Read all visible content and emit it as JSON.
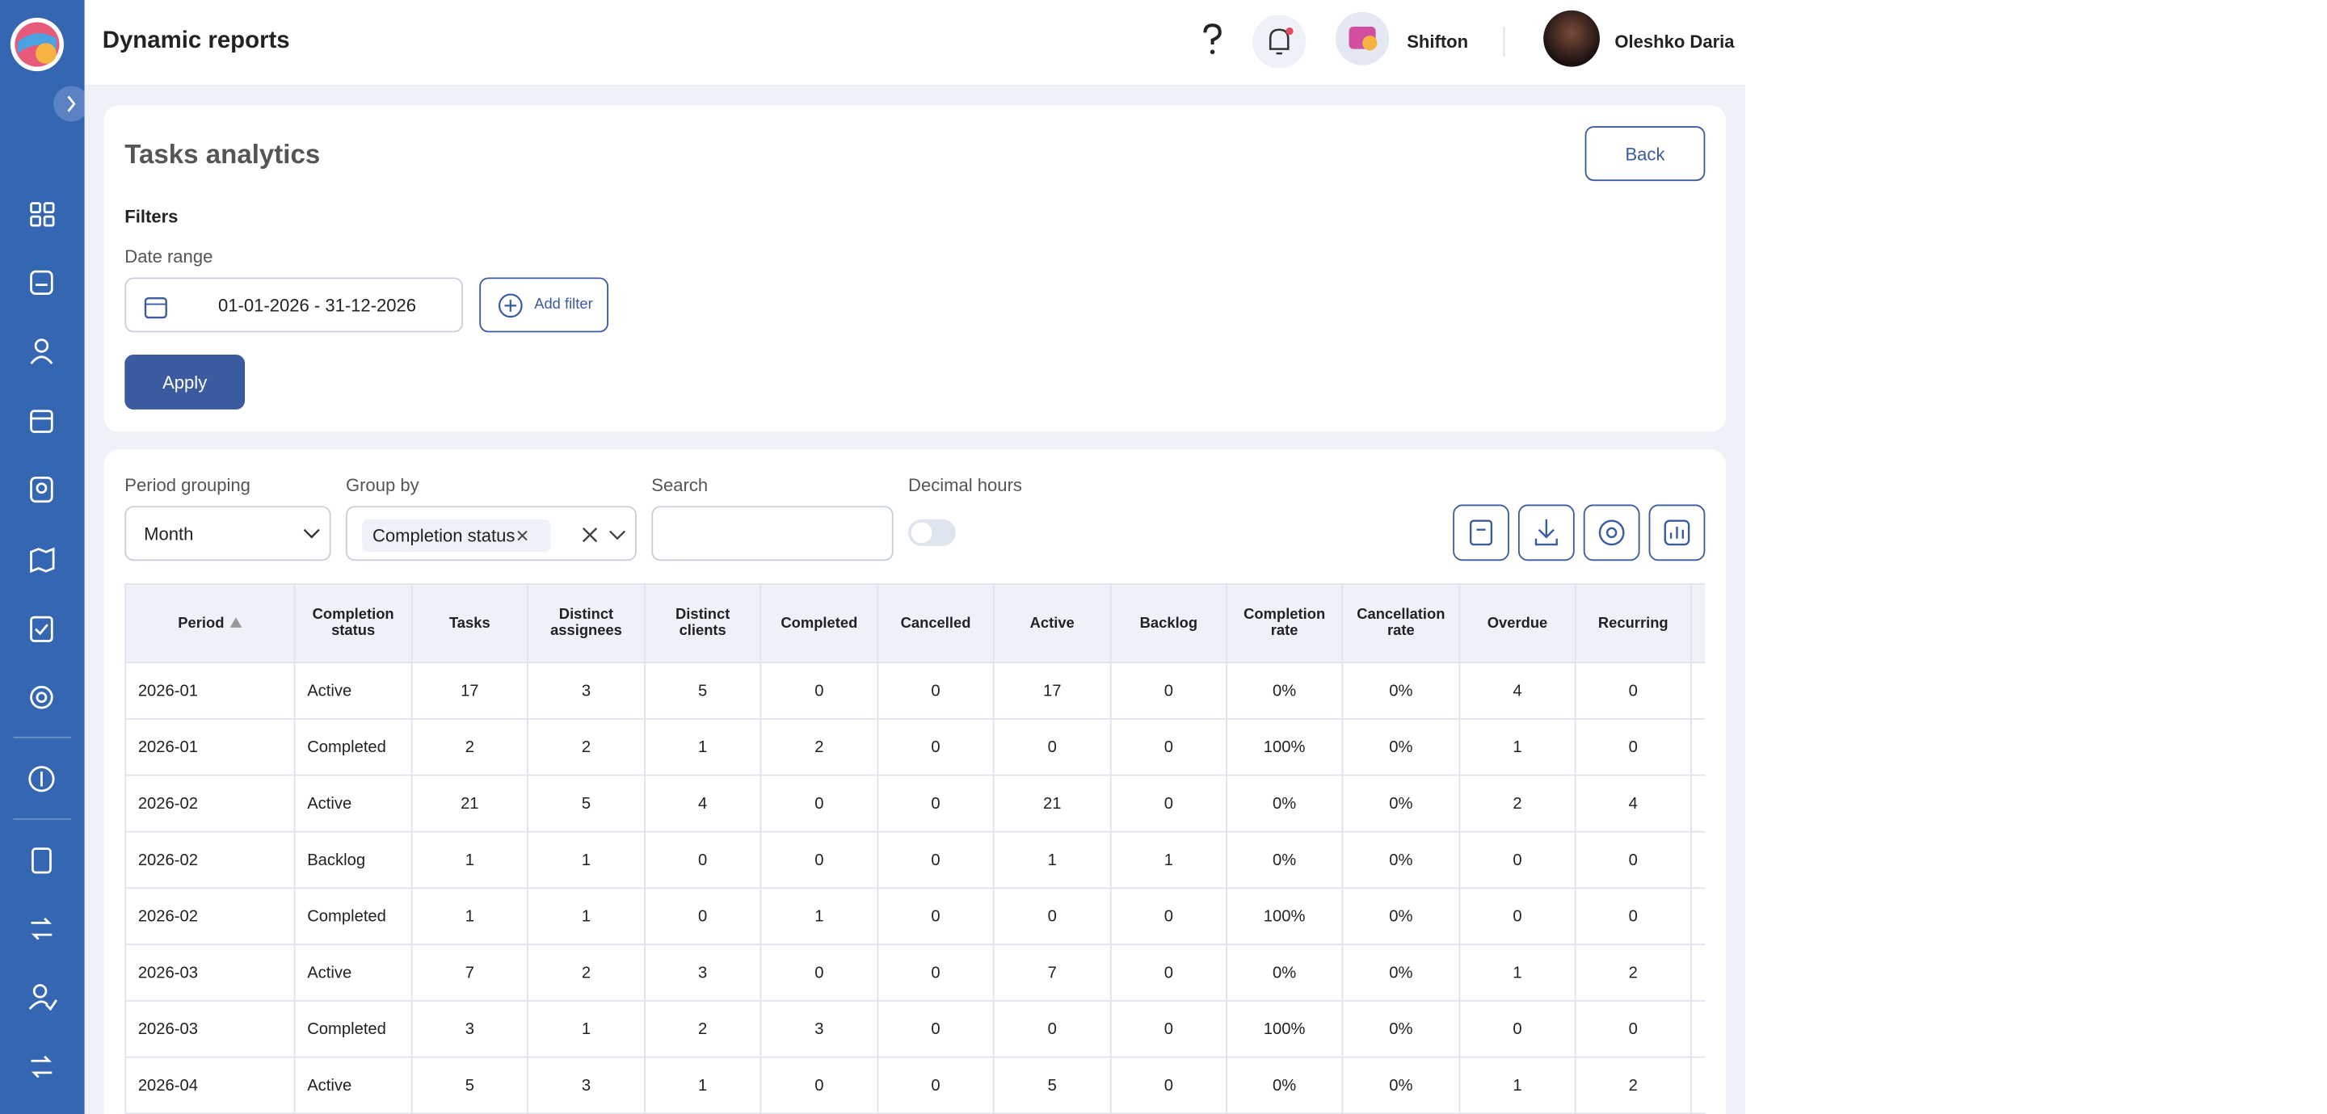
{
  "header": {
    "title": "Dynamic reports",
    "company": "Shifton",
    "user": "Oleshko Daria"
  },
  "report": {
    "title": "Tasks analytics",
    "back": "Back",
    "filters_label": "Filters",
    "date_range_label": "Date range",
    "date_range": "01-01-2026 - 31-12-2026",
    "add_filter": "Add filter",
    "apply": "Apply"
  },
  "controls": {
    "period_grouping_label": "Period grouping",
    "period_grouping": "Month",
    "group_by_label": "Group by",
    "group_by_chip": "Completion status",
    "search_label": "Search",
    "decimal_hours_label": "Decimal hours"
  },
  "table": {
    "columns": [
      "Period",
      "Completion status",
      "Tasks",
      "Distinct assignees",
      "Distinct clients",
      "Completed",
      "Cancelled",
      "Active",
      "Backlog",
      "Completion rate",
      "Cancellation rate",
      "Overdue",
      "Recurring"
    ],
    "rows": [
      [
        "2026-01",
        "Active",
        "17",
        "3",
        "5",
        "0",
        "0",
        "17",
        "0",
        "0%",
        "0%",
        "4",
        "0"
      ],
      [
        "2026-01",
        "Completed",
        "2",
        "2",
        "1",
        "2",
        "0",
        "0",
        "0",
        "100%",
        "0%",
        "1",
        "0"
      ],
      [
        "2026-02",
        "Active",
        "21",
        "5",
        "4",
        "0",
        "0",
        "21",
        "0",
        "0%",
        "0%",
        "2",
        "4"
      ],
      [
        "2026-02",
        "Backlog",
        "1",
        "1",
        "0",
        "0",
        "0",
        "1",
        "1",
        "0%",
        "0%",
        "0",
        "0"
      ],
      [
        "2026-02",
        "Completed",
        "1",
        "1",
        "0",
        "1",
        "0",
        "0",
        "0",
        "100%",
        "0%",
        "0",
        "0"
      ],
      [
        "2026-03",
        "Active",
        "7",
        "2",
        "3",
        "0",
        "0",
        "7",
        "0",
        "0%",
        "0%",
        "1",
        "2"
      ],
      [
        "2026-03",
        "Completed",
        "3",
        "1",
        "2",
        "3",
        "0",
        "0",
        "0",
        "100%",
        "0%",
        "0",
        "0"
      ],
      [
        "2026-04",
        "Active",
        "5",
        "3",
        "1",
        "0",
        "0",
        "5",
        "0",
        "0%",
        "0%",
        "1",
        "2"
      ]
    ]
  }
}
